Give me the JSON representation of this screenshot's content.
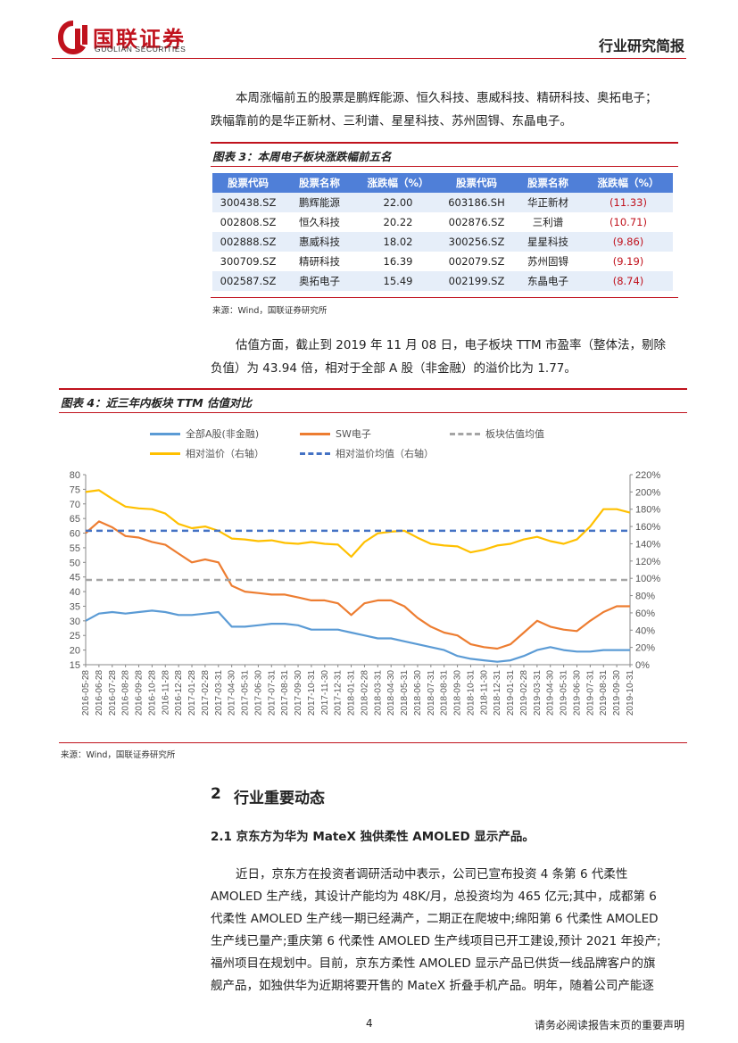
{
  "header": {
    "logo_cn": "国联证券",
    "logo_en": "GUOLIAN SECURITIES",
    "report_type": "行业研究简报"
  },
  "intro": {
    "line1": "本周涨幅前五的股票是鹏辉能源、恒久科技、惠威科技、精研科技、奥拓电子；",
    "line2": "跌幅靠前的是华正新材、三利谱、星星科技、苏州固锝、东晶电子。"
  },
  "table_figure": {
    "title": "图表 3：本周电子板块涨跌幅前五名",
    "headers": [
      "股票代码",
      "股票名称",
      "涨跌幅（%）",
      "股票代码",
      "股票名称",
      "涨跌幅（%）"
    ],
    "rows": [
      [
        "300438.SZ",
        "鹏辉能源",
        "22.00",
        "603186.SH",
        "华正新材",
        "(11.33)"
      ],
      [
        "002808.SZ",
        "恒久科技",
        "20.22",
        "002876.SZ",
        "三利谱",
        "(10.71)"
      ],
      [
        "002888.SZ",
        "惠威科技",
        "18.02",
        "300256.SZ",
        "星星科技",
        "(9.86)"
      ],
      [
        "300709.SZ",
        "精研科技",
        "16.39",
        "002079.SZ",
        "苏州固锝",
        "(9.19)"
      ],
      [
        "002587.SZ",
        "奥拓电子",
        "15.49",
        "002199.SZ",
        "东晶电子",
        "(8.74)"
      ]
    ],
    "source": "来源：Wind，国联证券研究所"
  },
  "valuation": {
    "line1": "估值方面，截止到 2019 年 11 月 08 日，电子板块 TTM 市盈率（整体法，剔除",
    "line2": "负值）为 43.94 倍，相对于全部 A 股（非金融）的溢价比为 1.77。"
  },
  "chart_figure": {
    "title": "图表 4：近三年内板块 TTM 估值对比",
    "source": "来源：Wind，国联证券研究所"
  },
  "chart_data": {
    "type": "line",
    "legend": [
      "全部A股(非金融)",
      "SW电子",
      "板块估值均值",
      "相对溢价（右轴）",
      "相对溢价均值（右轴）"
    ],
    "legend_placement": "top",
    "colors": {
      "all_a": "#5b9bd5",
      "sw": "#ed7d31",
      "sector_mean": "#a5a5a5",
      "premium": "#ffc000",
      "premium_mean": "#4472c4"
    },
    "y_left": {
      "min": 15,
      "max": 80,
      "ticks": [
        "15",
        "20",
        "25",
        "30",
        "35",
        "40",
        "45",
        "50",
        "55",
        "60",
        "65",
        "70",
        "75",
        "80"
      ]
    },
    "y_right": {
      "min": 0,
      "max": 220,
      "ticks": [
        "0%",
        "20%",
        "40%",
        "60%",
        "80%",
        "100%",
        "120%",
        "140%",
        "160%",
        "180%",
        "200%",
        "220%"
      ]
    },
    "x_ticks": [
      "2016-05-28",
      "2016-06-28",
      "2016-07-28",
      "2016-08-28",
      "2016-09-28",
      "2016-10-28",
      "2016-11-28",
      "2016-12-28",
      "2017-01-28",
      "2017-02-28",
      "2017-03-31",
      "2017-04-30",
      "2017-05-31",
      "2017-06-30",
      "2017-07-31",
      "2017-08-31",
      "2017-09-30",
      "2017-10-31",
      "2017-11-30",
      "2017-12-31",
      "2018-01-31",
      "2018-02-28",
      "2018-03-31",
      "2018-04-30",
      "2018-05-31",
      "2018-06-30",
      "2018-07-31",
      "2018-08-31",
      "2018-09-30",
      "2018-10-31",
      "2018-11-30",
      "2018-12-31",
      "2019-01-31",
      "2019-02-28",
      "2019-03-31",
      "2019-04-30",
      "2019-05-31",
      "2019-06-30",
      "2019-07-31",
      "2019-08-31",
      "2019-09-30",
      "2019-10-31"
    ],
    "series": [
      {
        "name": "全部A股(非金融)",
        "axis": "left",
        "values": [
          30,
          32.5,
          33,
          32.5,
          33,
          33.5,
          33,
          32,
          32,
          32.5,
          33,
          28,
          28,
          28.5,
          29,
          29,
          28.5,
          27,
          27,
          27,
          26,
          25,
          24,
          24,
          23,
          22,
          21,
          20,
          18,
          17,
          16.5,
          16,
          16.5,
          18,
          20,
          21,
          20,
          19.5,
          19.5,
          20,
          20,
          20
        ]
      },
      {
        "name": "SW电子",
        "axis": "left",
        "values": [
          60,
          64,
          62,
          59,
          58.5,
          57,
          56,
          53,
          50,
          51,
          50,
          42,
          40,
          39.5,
          39,
          39,
          38,
          37,
          37,
          36,
          32,
          36,
          37,
          37,
          35,
          31,
          28,
          26,
          25,
          22,
          21,
          20.5,
          22,
          26,
          30,
          28,
          27,
          26.5,
          30,
          33,
          35,
          35
        ]
      },
      {
        "name": "板块估值均值",
        "axis": "left",
        "values": [
          44,
          44,
          44,
          44,
          44,
          44,
          44,
          44,
          44,
          44,
          44,
          44,
          44,
          44,
          44,
          44,
          44,
          44,
          44,
          44,
          44,
          44,
          44,
          44,
          44,
          44,
          44,
          44,
          44,
          44,
          44,
          44,
          44,
          44,
          44,
          44,
          44,
          44,
          44,
          44,
          44,
          44
        ]
      },
      {
        "name": "相对溢价（右轴）",
        "axis": "right",
        "values": [
          200,
          202,
          192,
          183,
          181,
          180,
          175,
          163,
          158,
          160,
          155,
          146,
          145,
          143,
          144,
          141,
          140,
          142,
          140,
          139,
          125,
          142,
          152,
          154,
          155,
          147,
          140,
          138,
          137,
          130,
          133,
          138,
          140,
          145,
          148,
          143,
          140,
          145,
          160,
          180,
          180,
          176
        ]
      },
      {
        "name": "相对溢价均值（右轴）",
        "axis": "right",
        "values": [
          155,
          155,
          155,
          155,
          155,
          155,
          155,
          155,
          155,
          155,
          155,
          155,
          155,
          155,
          155,
          155,
          155,
          155,
          155,
          155,
          155,
          155,
          155,
          155,
          155,
          155,
          155,
          155,
          155,
          155,
          155,
          155,
          155,
          155,
          155,
          155,
          155,
          155,
          155,
          155,
          155,
          155
        ]
      }
    ]
  },
  "section2": {
    "number": "2",
    "title": "行业重要动态"
  },
  "section21": {
    "title": "2.1 京东方为华为 MateX 独供柔性 AMOLED 显示产品。",
    "lines": [
      "近日，京东方在投资者调研活动中表示，公司已宣布投资 4 条第 6 代柔性",
      "AMOLED 生产线，其设计产能均为 48K/月，总投资均为 465 亿元;其中，成都第 6",
      "代柔性 AMOLED 生产线一期已经满产，二期正在爬坡中;绵阳第 6 代柔性 AMOLED",
      "生产线已量产;重庆第 6 代柔性 AMOLED 生产线项目已开工建设,预计 2021 年投产;",
      "福州项目在规划中。目前，京东方柔性 AMOLED 显示产品已供货一线品牌客户的旗",
      "舰产品，如独供华为近期将要开售的 MateX 折叠手机产品。明年，随着公司产能逐"
    ]
  },
  "footer": {
    "page": "4",
    "note": "请务必阅读报告末页的重要声明"
  }
}
